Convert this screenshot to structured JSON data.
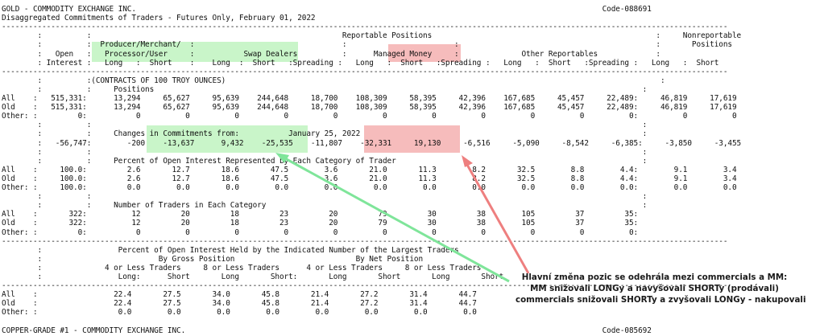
{
  "report": {
    "lines": [
      "GOLD - COMMODITY EXCHANGE INC.                                                                                                        Code-088691",
      "Disaggregated Commitments of Traders - Futures Only, February 01, 2022",
      "------------------------------------------------------------------------------------------------------------------------------------------------------------------",
      "        :          :                                                        Reportable Positions                                                  :     Nonreportable",
      "        :          :  Producer/Merchant/  :                                 :                        :                                            :       Positions",
      "        :   Open   :   Processor/User     :           Swap Dealers          :      Managed Money     :              Other Reportables             :",
      "        : Interest :   Long   :  Short    :    Long  :  Short   :Spreading :   Long   :  Short   :Spreading :   Long   :  Short   :Spreading :   Long   :  Short",
      "------------------------------------------------------------------------------------------------------------------------------------------------------------------",
      "        :          :(CONTRACTS OF 100 TROY OUNCES)                                                                                                 :",
      "        :          :     Positions                                                                                                             :",
      "All    :   515,331:      13,294     65,627     95,639    244,648     18,700    108,309     58,395     42,396    167,685     45,457     22,489:     46,819     17,619",
      "Old    :   515,331:      13,294     65,627     95,639    244,648     18,700    108,309     58,395     42,396    167,685     45,457     22,489:     46,819     17,619",
      "Other: :         0:           0          0          0          0          0          0          0          0          0          0          0:          0          0",
      "        :          :                                                                                                                           :",
      "        :          :     Changes in Commitments from:           January 25, 2022                                                               :",
      "        :   -56,747:        -200    -13,637      9,432    -25,535    -11,807    -32,331     19,130     -6,516     -5,090     -8,542     -6,385:     -3,850     -3,455",
      "        :          :                                                                                                                           :",
      "        :          :     Percent of Open Interest Represented by Each Category of Trader                                                       :",
      "All    :     100.0:         2.6       12.7       18.6       47.5        3.6       21.0       11.3        8.2       32.5        8.8        4.4:        9.1        3.4",
      "Old    :     100.0:         2.6       12.7       18.6       47.5        3.6       21.0       11.3        8.2       32.5        8.8        4.4:        9.1        3.4",
      "Other: :     100.0:         0.0        0.0        0.0        0.0        0.0        0.0        0.0        0.0        0.0        0.0        0.0:        0.0        0.0",
      "        :          :                                                                                                                           :",
      "        :          :     Number of Traders in Each Category                                                                                    :",
      "All    :       322:          12         20         18         23         20         79         30         38        105         37         35:",
      "Old    :       322:          12         20         18         23         20         79         30         38        105         37         35:",
      "Other: :         0:           0          0          0          0          0          0          0          0          0          0          0:",
      "------------------------------------------------------------------------------------------------------------------------------------------------------------------",
      "        :                 Percent of Open Interest Held by the Indicated Number of the Largest Traders",
      "        :                          By Gross Position                           By Net Position",
      "        :              4 or Less Traders     8 or Less Traders      4 or Less Traders     8 or Less Traders",
      "        :                 Long:      Short       Long       Short:       Long       Short       Long       Short",
      "------------------------------------------------------------------------------------------------------------------------------------------------------------------",
      "All    :                 22.4       27.5       34.0       45.8       21.4       27.2       31.4       44.7",
      "Old    :                 22.4       27.5       34.0       45.8       21.4       27.2       31.4       44.7",
      "Other: :                  0.0        0.0        0.0        0.0        0.0        0.0        0.0        0.0",
      "",
      "COPPER-GRADE #1 - COMMODITY EXCHANGE INC.                                                                                             Code-085692"
    ]
  },
  "annotation": {
    "lines": [
      "Hlavní změna pozic se odehrála mezi commercials a MM:",
      "MM snižovali LONGy a navyšovali SHORTy (prodávali)",
      "commercials snižovali SHORTy a zvyšovali LONGy - nakupovali"
    ],
    "colors": {
      "green_highlight": "#c9f5c9",
      "red_highlight": "#f6bcbc",
      "green_arrow": "#7fe59a",
      "red_arrow": "#ee7f7f"
    }
  }
}
